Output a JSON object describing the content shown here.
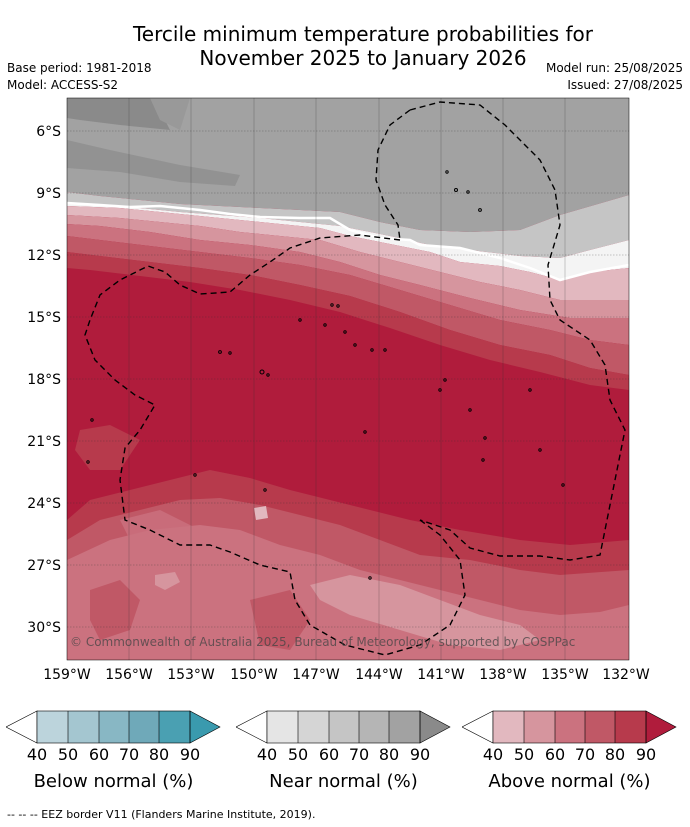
{
  "title_line1": "Tercile minimum temperature probabilities for",
  "title_line2": "November 2025 to January 2026",
  "base_period": "Base period: 1981-2018",
  "model": "Model: ACCESS-S2",
  "model_run": "Model run: 25/08/2025",
  "issued": "Issued: 27/08/2025",
  "copyright": "© Commonwealth of Australia 2025, Bureau of Meteorology, supported by COSPPac",
  "lat_labels": [
    "6°S",
    "9°S",
    "12°S",
    "15°S",
    "18°S",
    "21°S",
    "24°S",
    "27°S",
    "30°S"
  ],
  "lon_labels": [
    "159°W",
    "156°W",
    "153°W",
    "150°W",
    "147°W",
    "144°W",
    "141°W",
    "138°W",
    "135°W",
    "132°W"
  ],
  "colorbars": [
    {
      "label": "Below normal (%)",
      "ticks": [
        "40",
        "50",
        "60",
        "70",
        "80",
        "90"
      ],
      "colors": [
        "#ffffff",
        "#bcd4dc",
        "#a4c6d0",
        "#88b7c4",
        "#6fa9b9",
        "#4aa0b2",
        "#3a9aae"
      ]
    },
    {
      "label": "Near normal (%)",
      "ticks": [
        "40",
        "50",
        "60",
        "70",
        "80",
        "90"
      ],
      "colors": [
        "#ffffff",
        "#e5e5e5",
        "#d5d5d5",
        "#c5c5c5",
        "#b5b5b5",
        "#a2a2a2",
        "#8a8a8a"
      ]
    },
    {
      "label": "Above normal (%)",
      "ticks": [
        "40",
        "50",
        "60",
        "70",
        "80",
        "90"
      ],
      "colors": [
        "#ffffff",
        "#e2b8bf",
        "#d6959e",
        "#cb727f",
        "#c05866",
        "#b73a4c",
        "#b01c3c"
      ]
    }
  ],
  "footnote": "-- -- -- EEZ border V11 (Flanders Marine Institute, 2019)."
}
